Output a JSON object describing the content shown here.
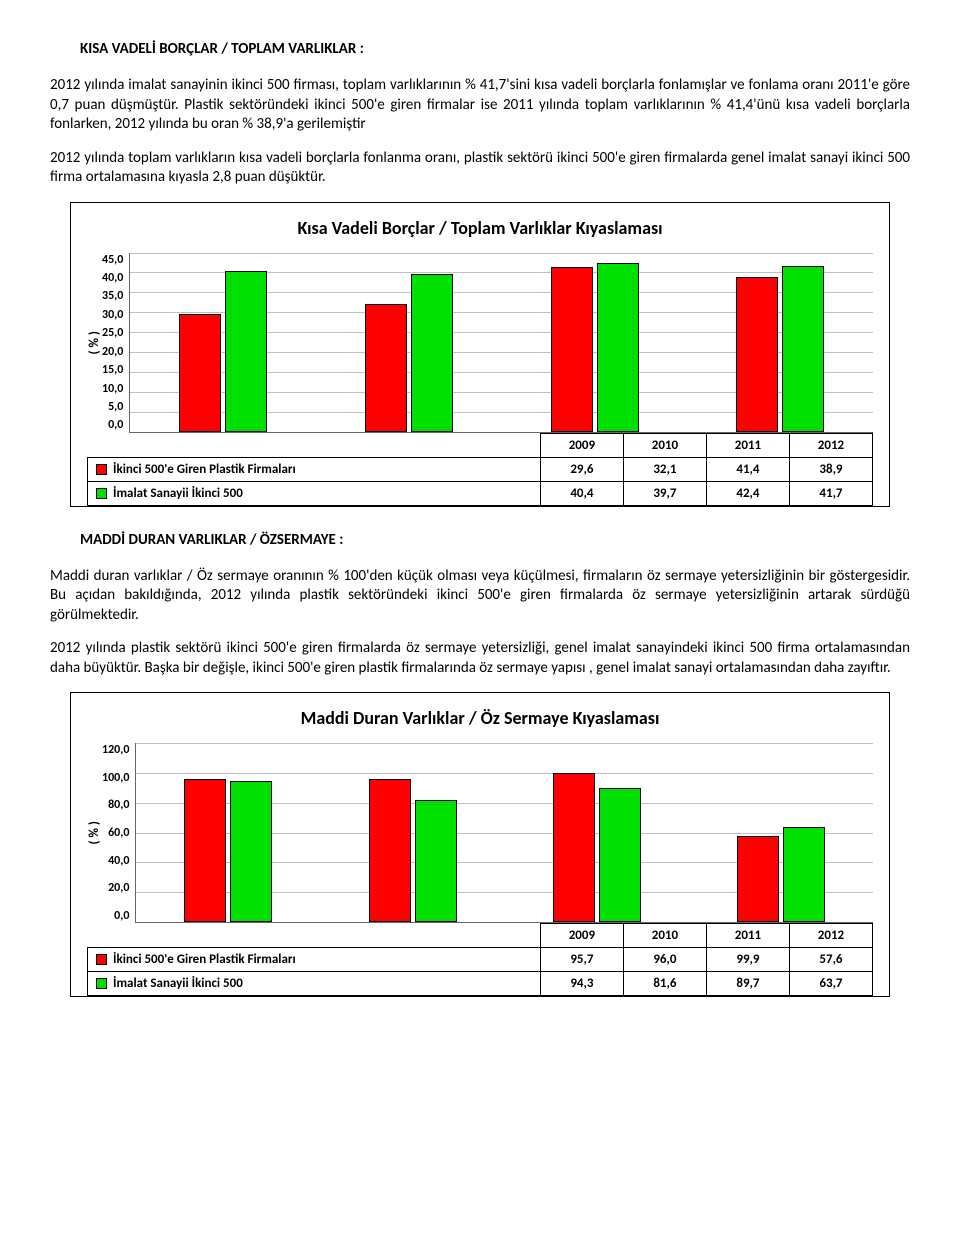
{
  "section1": {
    "heading": "KISA VADELİ BORÇLAR / TOPLAM VARLIKLAR :",
    "para1": "2012 yılında imalat sanayinin ikinci 500 firması, toplam varlıklarının % 41,7'sini kısa vadeli borçlarla fonlamışlar ve fonlama oranı 2011'e göre 0,7 puan düşmüştür. Plastik sektöründeki ikinci 500'e giren firmalar ise 2011 yılında toplam varlıklarının % 41,4'ünü kısa vadeli borçlarla fonlarken, 2012 yılında bu oran % 38,9'a gerilemiştir",
    "para2": "2012 yılında toplam varlıkların kısa vadeli borçlarla fonlanma oranı, plastik sektörü ikinci 500'e giren firmalarda genel imalat sanayi ikinci 500 firma ortalamasına kıyasla 2,8 puan düşüktür."
  },
  "chart1": {
    "title": "Kısa Vadeli Borçlar / Toplam Varlıklar Kıyaslaması",
    "ylabel": "( % )",
    "ylim": [
      0,
      45
    ],
    "yticks": [
      "45,0",
      "40,0",
      "35,0",
      "30,0",
      "25,0",
      "20,0",
      "15,0",
      "10,0",
      "5,0",
      "0,0"
    ],
    "categories": [
      "2009",
      "2010",
      "2011",
      "2012"
    ],
    "series1_label": "İkinci 500'e Giren Plastik Firmaları",
    "series2_label": "İmalat Sanayii İkinci 500",
    "series1_values": [
      29.6,
      32.1,
      41.4,
      38.9
    ],
    "series2_values": [
      40.4,
      39.7,
      42.4,
      41.7
    ],
    "series1_display": [
      "29,6",
      "32,1",
      "41,4",
      "38,9"
    ],
    "series2_display": [
      "40,4",
      "39,7",
      "42,4",
      "41,7"
    ],
    "bar_color1": "#ff0000",
    "bar_color2": "#00e000",
    "grid_color": "#c0c0c0",
    "background_color": "#ffffff"
  },
  "section2": {
    "heading": "MADDİ DURAN VARLIKLAR / ÖZSERMAYE :",
    "para1": "Maddi duran varlıklar / Öz sermaye oranının % 100'den küçük olması veya küçülmesi, firmaların öz sermaye yetersizliğinin bir göstergesidir. Bu açıdan bakıldığında, 2012 yılında plastik sektöründeki ikinci 500'e giren firmalarda öz sermaye yetersizliğinin artarak sürdüğü görülmektedir.",
    "para2": "2012 yılında plastik sektörü ikinci 500'e giren firmalarda öz sermaye yetersizliği, genel imalat sanayindeki ikinci 500 firma ortalamasından daha büyüktür. Başka bir değişle, ikinci 500'e giren plastik firmalarında öz sermaye yapısı , genel imalat sanayi ortalamasından daha zayıftır."
  },
  "chart2": {
    "title": "Maddi Duran Varlıklar / Öz Sermaye Kıyaslaması",
    "ylabel": "( % )",
    "ylim": [
      0,
      120
    ],
    "yticks": [
      "120,0",
      "100,0",
      "80,0",
      "60,0",
      "40,0",
      "20,0",
      "0,0"
    ],
    "categories": [
      "2009",
      "2010",
      "2011",
      "2012"
    ],
    "series1_label": "İkinci 500'e Giren Plastik Firmaları",
    "series2_label": "İmalat Sanayii İkinci 500",
    "series1_values": [
      95.7,
      96.0,
      99.9,
      57.6
    ],
    "series2_values": [
      94.3,
      81.6,
      89.7,
      63.7
    ],
    "series1_display": [
      "95,7",
      "96,0",
      "99,9",
      "57,6"
    ],
    "series2_display": [
      "94,3",
      "81,6",
      "89,7",
      "63,7"
    ],
    "bar_color1": "#ff0000",
    "bar_color2": "#00e000",
    "grid_color": "#c0c0c0",
    "background_color": "#ffffff"
  }
}
